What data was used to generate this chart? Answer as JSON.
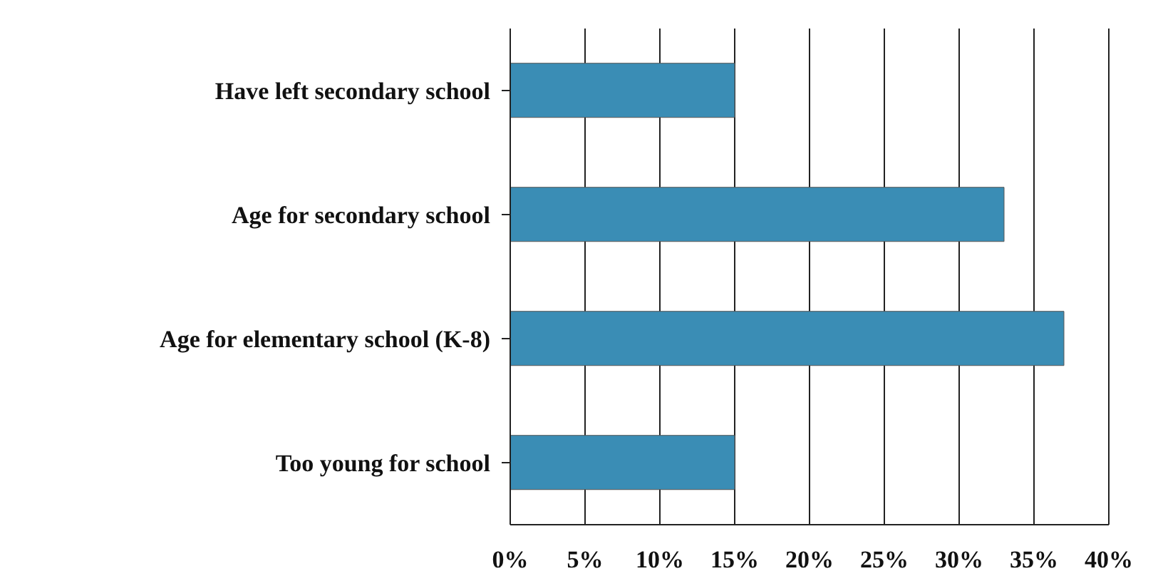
{
  "chart_data": {
    "type": "bar",
    "orientation": "horizontal",
    "categories": [
      "Have left secondary school",
      "Age for secondary school",
      "Age for elementary school (K-8)",
      "Too young for school"
    ],
    "values": [
      15,
      33,
      37,
      15
    ],
    "color": "#3a8db5",
    "xlim": [
      0,
      40
    ],
    "xticks": [
      {
        "value": 0,
        "label": "0%"
      },
      {
        "value": 5,
        "label": "5%"
      },
      {
        "value": 10,
        "label": "10%"
      },
      {
        "value": 15,
        "label": "15%"
      },
      {
        "value": 20,
        "label": "20%"
      },
      {
        "value": 25,
        "label": "25%"
      },
      {
        "value": 30,
        "label": "30%"
      },
      {
        "value": 35,
        "label": "35%"
      },
      {
        "value": 40,
        "label": "40%"
      }
    ],
    "grid": "x"
  }
}
